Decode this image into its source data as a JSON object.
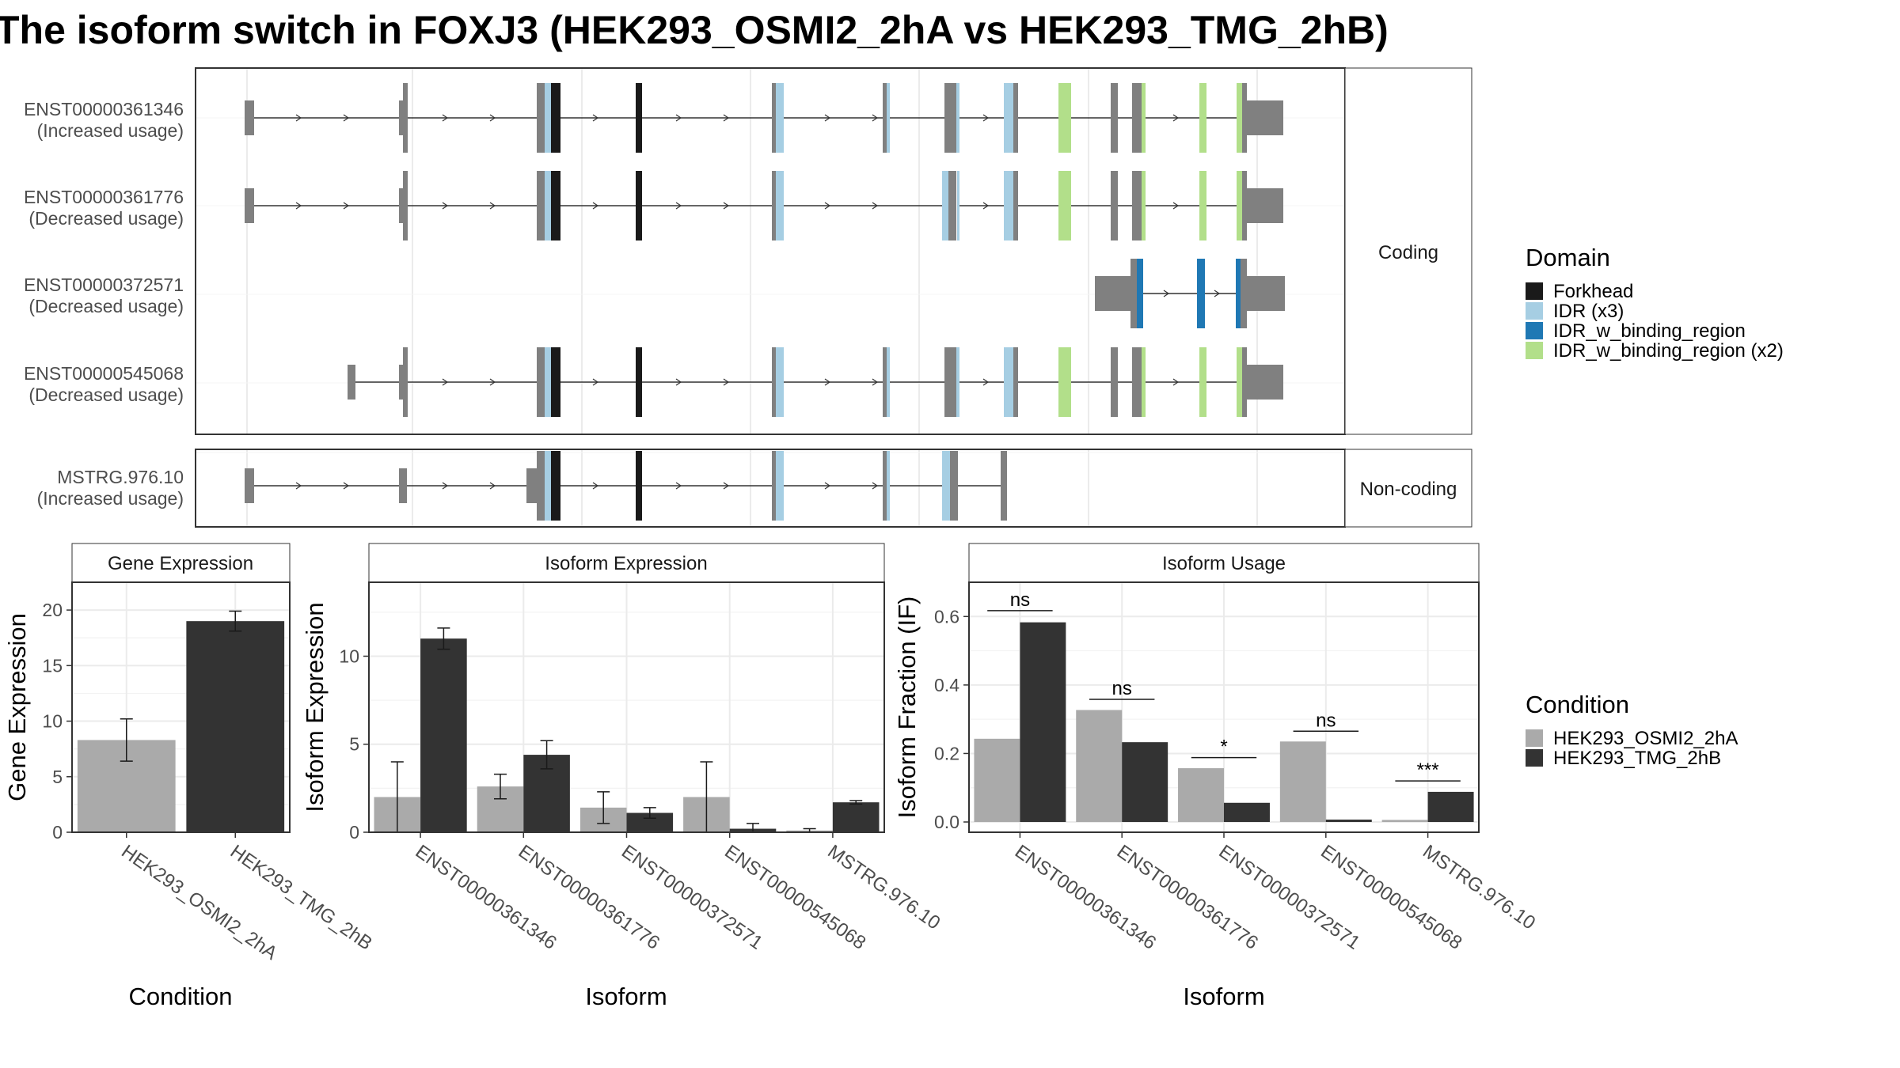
{
  "title": "The isoform switch in FOXJ3 (HEK293_OSMI2_2hA vs HEK293_TMG_2hB)",
  "colors": {
    "exon": "#808080",
    "panel_bg": "#ffffff",
    "grid": "#ebebeb",
    "border": "#333333",
    "forkhead": "#1a1a1a",
    "idr": "#a6cee3",
    "idr_w_binding_region": "#1f78b4",
    "idr_w_binding_region_x2": "#b2df8a",
    "cond_a": "#aaaaaa",
    "cond_b": "#333333"
  },
  "structure": {
    "groups": [
      {
        "label": "Coding",
        "transcripts": [
          {
            "id": "ENST00000361346",
            "usage": "(Increased usage)"
          },
          {
            "id": "ENST00000361776",
            "usage": "(Decreased usage)"
          },
          {
            "id": "ENST00000372571",
            "usage": "(Decreased usage)"
          },
          {
            "id": "ENST00000545068",
            "usage": "(Decreased usage)"
          }
        ]
      },
      {
        "label": "Non-coding",
        "transcripts": [
          {
            "id": "MSTRG.976.10",
            "usage": "(Increased usage)"
          }
        ]
      }
    ]
  },
  "legend_domain": {
    "title": "Domain",
    "items": [
      {
        "label": "Forkhead",
        "color": "#1a1a1a"
      },
      {
        "label": "IDR (x3)",
        "color": "#a6cee3"
      },
      {
        "label": "IDR_w_binding_region",
        "color": "#1f78b4"
      },
      {
        "label": "IDR_w_binding_region (x2)",
        "color": "#b2df8a"
      }
    ]
  },
  "legend_condition": {
    "title": "Condition",
    "items": [
      {
        "label": "HEK293_OSMI2_2hA",
        "color": "#aaaaaa"
      },
      {
        "label": "HEK293_TMG_2hB",
        "color": "#333333"
      }
    ]
  },
  "chart_data": [
    {
      "type": "bar",
      "title": "Gene Expression",
      "xlabel": "Condition",
      "ylabel": "Gene Expression",
      "categories": [
        "HEK293_OSMI2_2hA",
        "HEK293_TMG_2hB"
      ],
      "values": [
        8.3,
        19.0
      ],
      "errors": [
        [
          6.4,
          10.2
        ],
        [
          18.1,
          19.9
        ]
      ],
      "ylim": [
        0,
        22.5
      ],
      "yticks": [
        0,
        5,
        10,
        15,
        20
      ],
      "grid": true
    },
    {
      "type": "bar",
      "title": "Isoform Expression",
      "xlabel": "Isoform",
      "ylabel": "Isoform Expression",
      "categories": [
        "ENST00000361346",
        "ENST00000361776",
        "ENST00000372571",
        "ENST00000545068",
        "MSTRG.976.10"
      ],
      "series": [
        {
          "name": "HEK293_OSMI2_2hA",
          "values": [
            2.0,
            2.6,
            1.4,
            2.0,
            0.1
          ],
          "errors": [
            [
              0.0,
              4.0
            ],
            [
              1.9,
              3.3
            ],
            [
              0.5,
              2.3
            ],
            [
              0.0,
              4.0
            ],
            [
              0.0,
              0.2
            ]
          ]
        },
        {
          "name": "HEK293_TMG_2hB",
          "values": [
            11.0,
            4.4,
            1.1,
            0.2,
            1.7
          ],
          "errors": [
            [
              10.4,
              11.6
            ],
            [
              3.6,
              5.2
            ],
            [
              0.8,
              1.4
            ],
            [
              0.0,
              0.5
            ],
            [
              1.6,
              1.8
            ]
          ]
        }
      ],
      "ylim": [
        0,
        14.2
      ],
      "yticks": [
        0,
        5,
        10
      ],
      "grid": true
    },
    {
      "type": "bar",
      "title": "Isoform Usage",
      "xlabel": "Isoform",
      "ylabel": "Isoform Fraction (IF)",
      "categories": [
        "ENST00000361346",
        "ENST00000361776",
        "ENST00000372571",
        "ENST00000545068",
        "MSTRG.976.10"
      ],
      "series": [
        {
          "name": "HEK293_OSMI2_2hA",
          "values": [
            0.243,
            0.327,
            0.157,
            0.235,
            0.006
          ]
        },
        {
          "name": "HEK293_TMG_2hB",
          "values": [
            0.583,
            0.233,
            0.056,
            0.007,
            0.088
          ]
        }
      ],
      "significance": [
        {
          "label": "ns",
          "y": 0.617
        },
        {
          "label": "ns",
          "y": 0.358
        },
        {
          "label": "*",
          "y": 0.188
        },
        {
          "label": "ns",
          "y": 0.265
        },
        {
          "label": "***",
          "y": 0.12
        }
      ],
      "ylim": [
        -0.03,
        0.7
      ],
      "yticks": [
        0.0,
        0.2,
        0.4,
        0.6
      ],
      "ytick_labels": [
        "0.0",
        "0.2",
        "0.4",
        "0.6"
      ],
      "grid": true
    }
  ]
}
